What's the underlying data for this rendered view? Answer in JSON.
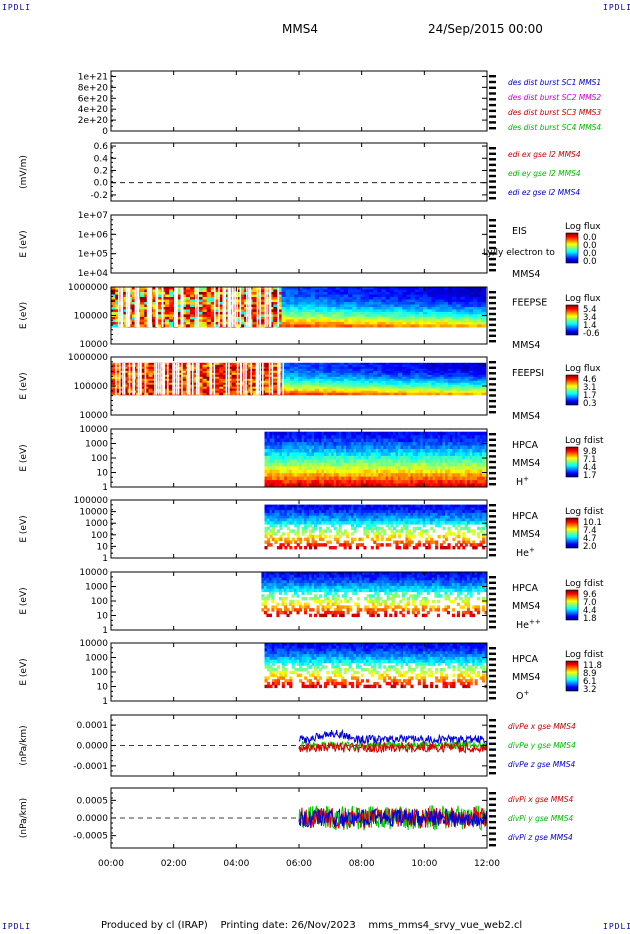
{
  "header": {
    "corner_label": "IPDLI",
    "spacecraft": "MMS4",
    "datetime": "24/Sep/2015 00:00"
  },
  "footer": {
    "producer": "Produced by cl (IRAP)",
    "printing_date": "Printing date: 26/Nov/2023",
    "filename": "mms_mms4_srvy_vue_web2.cl"
  },
  "chart_data": {
    "type": "stacked-timeseries",
    "x_ticks": [
      "00:00",
      "02:00",
      "04:00",
      "06:00",
      "08:00",
      "10:00",
      "12:00"
    ],
    "x_range_hours": [
      0,
      12
    ],
    "panels": [
      {
        "id": "des-dist",
        "type": "line",
        "ylabel": "",
        "yticks": [
          "1e+21",
          "8e+20",
          "6e+20",
          "4e+20",
          "2e+20",
          "0"
        ],
        "ylim": [
          0,
          1.1e+21
        ],
        "dashed_zero": true,
        "legend": [
          {
            "text": "des dist burst SC1 MMS1",
            "color": "#0000cc"
          },
          {
            "text": "des dist burst SC2 MMS2",
            "color": "#cc00cc"
          },
          {
            "text": "des dist burst SC3 MMS3",
            "color": "#cc0000"
          },
          {
            "text": "des dist burst SC4 MMS4",
            "color": "#00bb00"
          }
        ],
        "series": []
      },
      {
        "id": "edi-e",
        "type": "line",
        "ylabel": "(mV/m)",
        "yticks": [
          "0.6",
          "0.4",
          "0.2",
          "0.0",
          "-0.2"
        ],
        "ylim": [
          -0.3,
          0.65
        ],
        "dashed_zero": true,
        "legend": [
          {
            "text": "edi ex gse l2 MMS4",
            "color": "#cc0000"
          },
          {
            "text": "edi ey gse l2 MMS4",
            "color": "#00bb00"
          },
          {
            "text": "edi ez gse l2 MMS4",
            "color": "#0000cc"
          }
        ],
        "series": []
      },
      {
        "id": "eis",
        "type": "spectrogram",
        "ylabel": "E (eV)",
        "yticks": [
          "1e+07",
          "1e+06",
          "1e+05",
          "1e+04"
        ],
        "ylim_log": [
          4,
          7
        ],
        "instrument": "EIS",
        "species": "Ly/ly electron to",
        "sc": "MMS4",
        "colorbar_title": "Log flux",
        "colorbar_ticks": [
          "0.0",
          "0.0",
          "0.0",
          "0.0"
        ],
        "coverage_hours": null,
        "energy_log_band": null
      },
      {
        "id": "feeps-e",
        "type": "spectrogram",
        "ylabel": "E (eV)",
        "yticks": [
          "1000000",
          "100000",
          "10000"
        ],
        "ylim_log": [
          4,
          6
        ],
        "instrument": "FEEPSE",
        "species": "",
        "sc": "MMS4",
        "colorbar_title": "Log flux",
        "colorbar_ticks": [
          "5.4",
          "3.4",
          "1.4",
          "-0.6"
        ],
        "coverage_hours": [
          0.0,
          11.95
        ],
        "energy_log_band": [
          4.6,
          6.0
        ]
      },
      {
        "id": "feeps-i",
        "type": "spectrogram",
        "ylabel": "E (eV)",
        "yticks": [
          "1000000",
          "100000",
          "10000"
        ],
        "ylim_log": [
          4,
          6
        ],
        "instrument": "FEEPSI",
        "species": "",
        "sc": "MMS4",
        "colorbar_title": "Log flux",
        "colorbar_ticks": [
          "4.6",
          "3.1",
          "1.7",
          "0.3"
        ],
        "coverage_hours": [
          0.0,
          11.95
        ],
        "energy_log_band": [
          4.7,
          5.8
        ]
      },
      {
        "id": "hpca-h",
        "type": "spectrogram",
        "ylabel": "E (eV)",
        "yticks": [
          "10000",
          "1000",
          "100",
          "10",
          "1"
        ],
        "ylim_log": [
          0,
          4.3
        ],
        "instrument": "HPCA",
        "species": "H+",
        "sc": "MMS4",
        "colorbar_title": "Log fdist",
        "colorbar_ticks": [
          "9.8",
          "7.1",
          "4.4",
          "1.7"
        ],
        "coverage_hours": [
          4.9,
          12.0
        ],
        "energy_log_band": [
          0.0,
          4.1
        ]
      },
      {
        "id": "hpca-he1",
        "type": "spectrogram",
        "ylabel": "E (eV)",
        "yticks": [
          "100000",
          "10000",
          "1000",
          "100",
          "10",
          "1"
        ],
        "ylim_log": [
          0,
          5
        ],
        "instrument": "HPCA",
        "species": "He+",
        "sc": "MMS4",
        "colorbar_title": "Log fdist",
        "colorbar_ticks": [
          "10.1",
          "7.4",
          "4.7",
          "2.0"
        ],
        "coverage_hours": [
          4.9,
          12.0
        ],
        "energy_log_band": [
          0.8,
          4.6
        ]
      },
      {
        "id": "hpca-he2",
        "type": "spectrogram",
        "ylabel": "E (eV)",
        "yticks": [
          "10000",
          "1000",
          "100",
          "10",
          "1"
        ],
        "ylim_log": [
          0,
          4.3
        ],
        "instrument": "HPCA",
        "species": "He++",
        "sc": "MMS4",
        "colorbar_title": "Log fdist",
        "colorbar_ticks": [
          "9.6",
          "7.0",
          "4.4",
          "1.8"
        ],
        "coverage_hours": [
          4.8,
          12.0
        ],
        "energy_log_band": [
          1.0,
          4.3
        ]
      },
      {
        "id": "hpca-o",
        "type": "spectrogram",
        "ylabel": "E (eV)",
        "yticks": [
          "10000",
          "1000",
          "100",
          "10",
          "1"
        ],
        "ylim_log": [
          0,
          4.3
        ],
        "instrument": "HPCA",
        "species": "O+",
        "sc": "MMS4",
        "colorbar_title": "Log fdist",
        "colorbar_ticks": [
          "11.8",
          "8.9",
          "6.1",
          "3.2"
        ],
        "coverage_hours": [
          4.9,
          12.0
        ],
        "energy_log_band": [
          1.0,
          4.3
        ]
      },
      {
        "id": "divpe",
        "type": "line",
        "ylabel": "(nPa/km)",
        "yticks": [
          "0.0001",
          "0.0000",
          "-0.0001"
        ],
        "ylim": [
          -0.00015,
          0.00015
        ],
        "dashed_zero": true,
        "legend": [
          {
            "text": "divPe x gse MMS4",
            "color": "#cc0000"
          },
          {
            "text": "divPe y gse MMS4",
            "color": "#00bb00"
          },
          {
            "text": "divPe z gse MMS4",
            "color": "#0000cc"
          }
        ],
        "series": [
          {
            "color": "#00cc00",
            "t_start": 6.0,
            "t_end": 12.0,
            "amp": 2e-05,
            "offset": 0.0
          },
          {
            "color": "#dd0000",
            "t_start": 6.0,
            "t_end": 12.0,
            "amp": 2.5e-05,
            "offset": -1e-05
          },
          {
            "color": "#0000dd",
            "t_start": 6.0,
            "t_end": 12.0,
            "amp": 2e-05,
            "offset": 3e-05
          }
        ]
      },
      {
        "id": "divpi",
        "type": "line",
        "ylabel": "(nPa/km)",
        "yticks": [
          "0.0005",
          "0.0000",
          "-0.0005"
        ],
        "ylim": [
          -0.00085,
          0.00085
        ],
        "dashed_zero": true,
        "legend": [
          {
            "text": "divPi x gse MMS4",
            "color": "#cc0000"
          },
          {
            "text": "divPi y gse MMS4",
            "color": "#00bb00"
          },
          {
            "text": "divPi z gse MMS4",
            "color": "#0000cc"
          }
        ],
        "series": [
          {
            "color": "#00cc00",
            "t_start": 6.0,
            "t_end": 12.0,
            "amp": 0.00035,
            "offset": 0.0
          },
          {
            "color": "#dd0000",
            "t_start": 6.0,
            "t_end": 12.0,
            "amp": 0.0003,
            "offset": 0.0
          },
          {
            "color": "#0000dd",
            "t_start": 6.0,
            "t_end": 12.0,
            "amp": 0.00025,
            "offset": 0.0
          }
        ]
      }
    ]
  }
}
